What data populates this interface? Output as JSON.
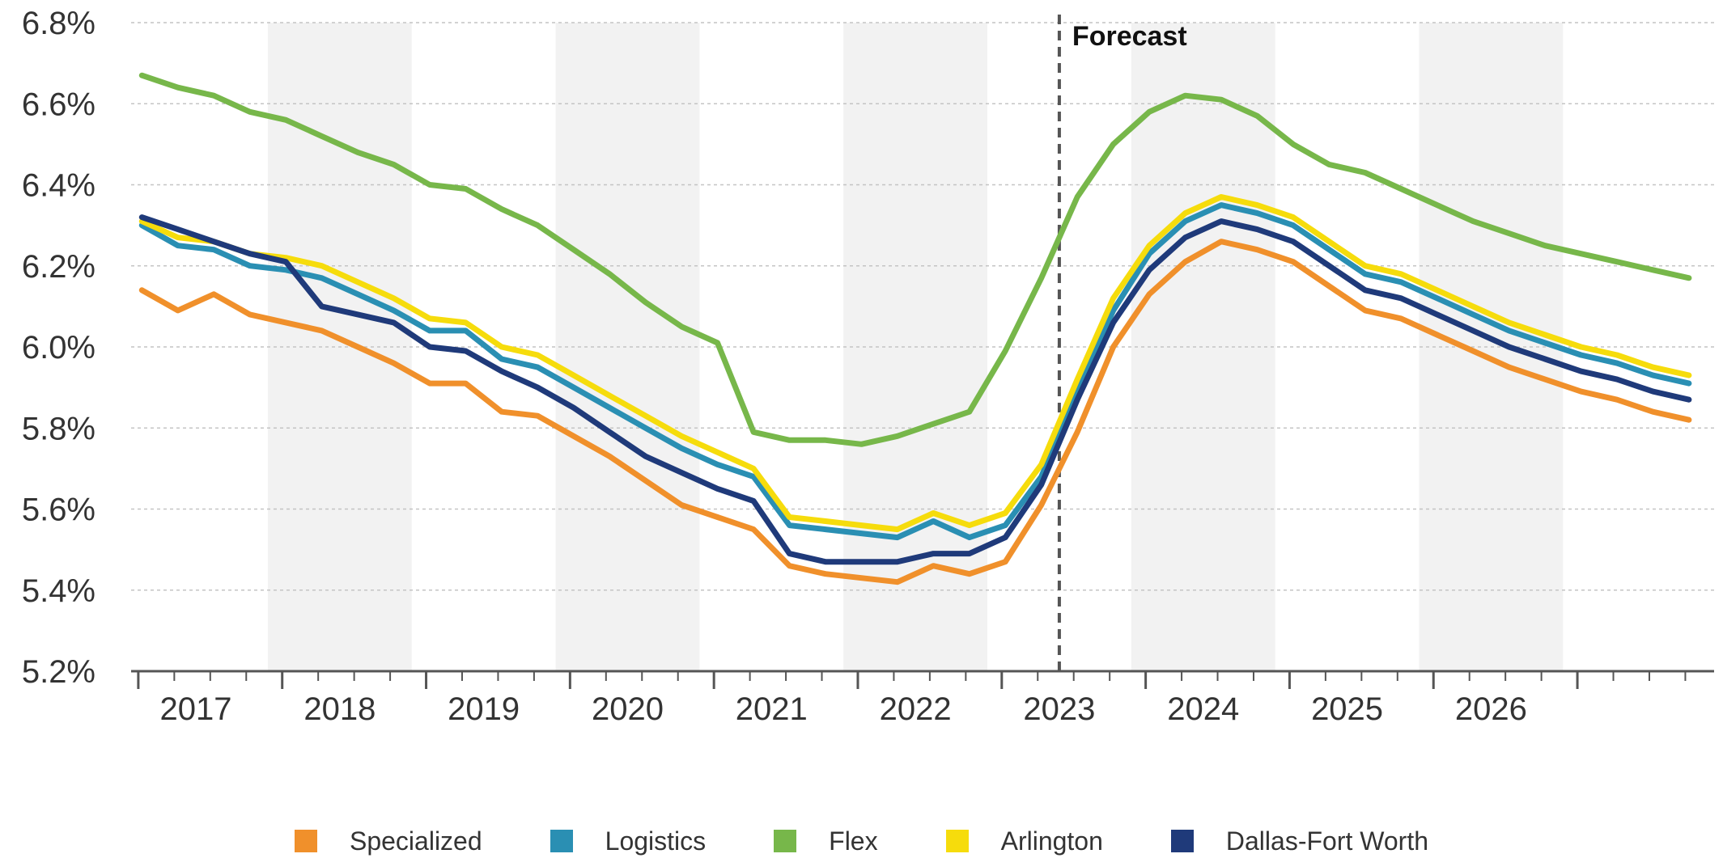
{
  "chart_data": {
    "type": "line",
    "title": "",
    "xlabel": "",
    "ylabel": "",
    "ylim": [
      5.2,
      6.8
    ],
    "y_ticks": [
      "5.2%",
      "5.4%",
      "5.6%",
      "5.8%",
      "6.0%",
      "6.2%",
      "6.4%",
      "6.6%",
      "6.8%"
    ],
    "y_tick_values": [
      5.2,
      5.4,
      5.6,
      5.8,
      6.0,
      6.2,
      6.4,
      6.6,
      6.8
    ],
    "x_range": [
      2016.55,
      2027.55
    ],
    "categories": [
      "2017",
      "2018",
      "2019",
      "2020",
      "2021",
      "2022",
      "2023",
      "2024",
      "2025",
      "2026"
    ],
    "shaded_years": [
      "2018",
      "2020",
      "2022",
      "2024",
      "2026"
    ],
    "grid": true,
    "legend_position": "bottom",
    "annotation": {
      "text": "Forecast",
      "x": 2023.0
    },
    "x": [
      2016.625,
      2016.875,
      2017.125,
      2017.375,
      2017.625,
      2017.875,
      2018.125,
      2018.375,
      2018.625,
      2018.875,
      2019.125,
      2019.375,
      2019.625,
      2019.875,
      2020.125,
      2020.375,
      2020.625,
      2020.875,
      2021.125,
      2021.375,
      2021.625,
      2021.875,
      2022.125,
      2022.375,
      2022.625,
      2022.875,
      2023.125,
      2023.375,
      2023.625,
      2023.875,
      2024.125,
      2024.375,
      2024.625,
      2024.875,
      2025.125,
      2025.375,
      2025.625,
      2025.875,
      2026.125,
      2026.375,
      2026.625,
      2026.875,
      2027.125,
      2027.375
    ],
    "series": [
      {
        "name": "Specialized",
        "color": "#f0902b",
        "values": [
          6.14,
          6.09,
          6.13,
          6.08,
          6.06,
          6.04,
          6.0,
          5.96,
          5.91,
          5.91,
          5.84,
          5.83,
          5.78,
          5.73,
          5.67,
          5.61,
          5.58,
          5.55,
          5.46,
          5.44,
          5.43,
          5.42,
          5.46,
          5.44,
          5.47,
          5.61,
          5.79,
          6.0,
          6.13,
          6.21,
          6.26,
          6.24,
          6.21,
          6.15,
          6.09,
          6.07,
          6.03,
          5.99,
          5.95,
          5.92,
          5.89,
          5.87,
          5.84,
          5.82
        ]
      },
      {
        "name": "Logistics",
        "color": "#2a8fb3",
        "values": [
          6.3,
          6.25,
          6.24,
          6.2,
          6.19,
          6.17,
          6.13,
          6.09,
          6.04,
          6.04,
          5.97,
          5.95,
          5.9,
          5.85,
          5.8,
          5.75,
          5.71,
          5.68,
          5.56,
          5.55,
          5.54,
          5.53,
          5.57,
          5.53,
          5.56,
          5.68,
          5.89,
          6.09,
          6.23,
          6.31,
          6.35,
          6.33,
          6.3,
          6.24,
          6.18,
          6.16,
          6.12,
          6.08,
          6.04,
          6.01,
          5.98,
          5.96,
          5.93,
          5.91
        ]
      },
      {
        "name": "Flex",
        "color": "#77b74a",
        "values": [
          6.67,
          6.64,
          6.62,
          6.58,
          6.56,
          6.52,
          6.48,
          6.45,
          6.4,
          6.39,
          6.34,
          6.3,
          6.24,
          6.18,
          6.11,
          6.05,
          6.01,
          5.79,
          5.77,
          5.77,
          5.76,
          5.78,
          5.81,
          5.84,
          5.99,
          6.17,
          6.37,
          6.5,
          6.58,
          6.62,
          6.61,
          6.57,
          6.5,
          6.45,
          6.43,
          6.39,
          6.35,
          6.31,
          6.28,
          6.25,
          6.23,
          6.21,
          6.19,
          6.17
        ]
      },
      {
        "name": "Arlington",
        "color": "#f6dc0c",
        "values": [
          6.31,
          6.27,
          6.26,
          6.23,
          6.22,
          6.2,
          6.16,
          6.12,
          6.07,
          6.06,
          6.0,
          5.98,
          5.93,
          5.88,
          5.83,
          5.78,
          5.74,
          5.7,
          5.58,
          5.57,
          5.56,
          5.55,
          5.59,
          5.56,
          5.59,
          5.71,
          5.92,
          6.12,
          6.25,
          6.33,
          6.37,
          6.35,
          6.32,
          6.26,
          6.2,
          6.18,
          6.14,
          6.1,
          6.06,
          6.03,
          6.0,
          5.98,
          5.95,
          5.93
        ]
      },
      {
        "name": "Dallas-Fort Worth",
        "color": "#1f3a7a",
        "values": [
          6.32,
          6.29,
          6.26,
          6.23,
          6.21,
          6.1,
          6.08,
          6.06,
          6.0,
          5.99,
          5.94,
          5.9,
          5.85,
          5.79,
          5.73,
          5.69,
          5.65,
          5.62,
          5.49,
          5.47,
          5.47,
          5.47,
          5.49,
          5.49,
          5.53,
          5.66,
          5.87,
          6.06,
          6.19,
          6.27,
          6.31,
          6.29,
          6.26,
          6.2,
          6.14,
          6.12,
          6.08,
          6.04,
          6.0,
          5.97,
          5.94,
          5.92,
          5.89,
          5.87
        ]
      }
    ]
  }
}
